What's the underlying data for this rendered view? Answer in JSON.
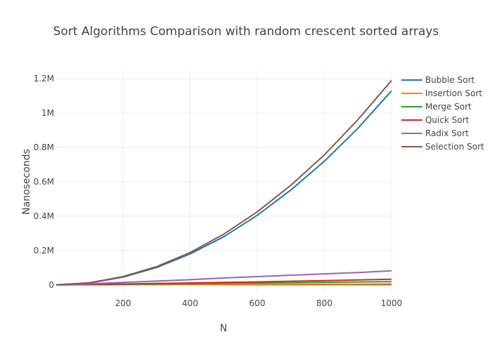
{
  "chart_data": {
    "type": "line",
    "title": "Sort Algorithms Comparison with random crescent sorted arrays",
    "xlabel": "N",
    "ylabel": "Nanoseconds",
    "xlim": [
      1,
      1000
    ],
    "ylim": [
      -50000,
      1250000
    ],
    "x_ticks": [
      200,
      400,
      600,
      800,
      1000
    ],
    "x_tick_labels": [
      "200",
      "400",
      "600",
      "800",
      "1000"
    ],
    "y_ticks": [
      0,
      200000,
      400000,
      600000,
      800000,
      1000000,
      1200000
    ],
    "y_tick_labels": [
      "0",
      "0.2M",
      "0.4M",
      "0.6M",
      "0.8M",
      "1M",
      "1.2M"
    ],
    "grid": true,
    "legend_position": "top-right",
    "x": [
      1,
      100,
      200,
      300,
      400,
      500,
      600,
      700,
      800,
      900,
      1000
    ],
    "series": [
      {
        "name": "Bubble Sort",
        "color": "#1f77b4",
        "values": [
          0,
          11000,
          45000,
          101000,
          180000,
          280000,
          405000,
          552000,
          720000,
          912000,
          1130000
        ]
      },
      {
        "name": "Insertion Sort",
        "color": "#ff7f0e",
        "values": [
          0,
          500,
          1000,
          1500,
          2000,
          2500,
          3000,
          3500,
          4000,
          4500,
          5000
        ]
      },
      {
        "name": "Merge Sort",
        "color": "#2ca02c",
        "values": [
          0,
          1500,
          3000,
          5000,
          7000,
          9000,
          11000,
          13000,
          15000,
          17000,
          19000
        ]
      },
      {
        "name": "Quick Sort",
        "color": "#d62728",
        "values": [
          0,
          2500,
          5000,
          8000,
          11000,
          14000,
          17000,
          21000,
          25000,
          29000,
          33000
        ]
      },
      {
        "name": "Radix Sort",
        "color": "#9467bd",
        "values": [
          0,
          6000,
          14000,
          22000,
          30000,
          40000,
          48000,
          56000,
          64000,
          72000,
          82000
        ]
      },
      {
        "name": "Selection Sort",
        "color": "#8c564b",
        "values": [
          0,
          12000,
          48000,
          106000,
          188000,
          295000,
          425000,
          580000,
          757000,
          962000,
          1190000
        ]
      }
    ]
  }
}
